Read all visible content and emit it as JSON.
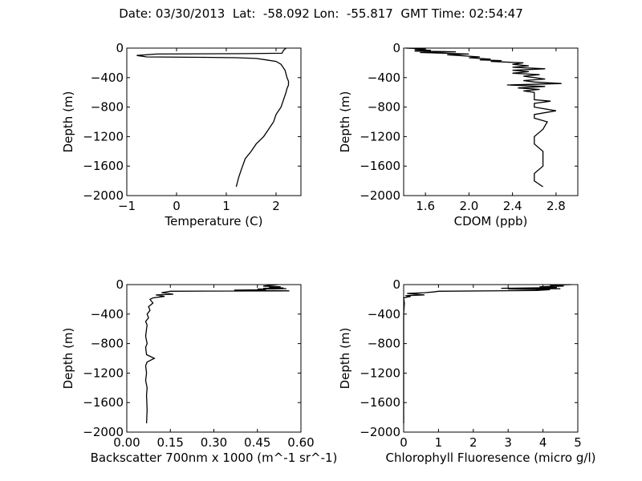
{
  "figure": {
    "suptitle": "Date: 03/30/2013  Lat:  -58.092 Lon:  -55.817  GMT Time: 02:54:47"
  },
  "chart_data": [
    {
      "type": "line",
      "title": "",
      "xlabel": "Temperature (C)",
      "ylabel": "Depth (m)",
      "xlim": [
        -1,
        2.5
      ],
      "ylim": [
        -2000,
        0
      ],
      "xticks": [
        -1,
        0,
        1,
        2
      ],
      "xtick_labels": [
        "−1",
        "0",
        "1",
        "2"
      ],
      "yticks": [
        0,
        -400,
        -800,
        -1200,
        -1600,
        -2000
      ],
      "ytick_labels": [
        "0",
        "−400",
        "−800",
        "−1200",
        "−1600",
        "−2000"
      ],
      "grid": false,
      "series": [
        {
          "x": [
            2.2,
            2.15,
            2.12,
            1.4,
            -0.4,
            -0.8,
            -0.6,
            0.5,
            1.2,
            1.6,
            1.8,
            2.0,
            2.1,
            2.18,
            2.2,
            2.22,
            2.25,
            2.25,
            2.22,
            2.2,
            2.15,
            2.1,
            2.0,
            1.95,
            1.85,
            1.75,
            1.6,
            1.5,
            1.38,
            1.3,
            1.25,
            1.2
          ],
          "y": [
            0,
            -30,
            -70,
            -75,
            -80,
            -100,
            -120,
            -125,
            -130,
            -140,
            -160,
            -180,
            -220,
            -300,
            -350,
            -400,
            -450,
            -500,
            -550,
            -600,
            -700,
            -800,
            -900,
            -1000,
            -1100,
            -1200,
            -1300,
            -1400,
            -1500,
            -1650,
            -1750,
            -1880
          ]
        }
      ]
    },
    {
      "type": "line",
      "title": "",
      "xlabel": "CDOM (ppb)",
      "ylabel": "Depth (m)",
      "xlim": [
        1.4,
        3.0
      ],
      "ylim": [
        -2000,
        0
      ],
      "xticks": [
        1.6,
        2.0,
        2.4,
        2.8
      ],
      "xtick_labels": [
        "1.6",
        "2.0",
        "2.4",
        "2.8"
      ],
      "yticks": [
        0,
        -400,
        -800,
        -1200,
        -1600,
        -2000
      ],
      "ytick_labels": [
        "0",
        "−400",
        "−800",
        "−1200",
        "−1600",
        "−2000"
      ],
      "grid": false,
      "series": [
        {
          "x": [
            1.42,
            1.6,
            1.5,
            1.65,
            1.5,
            1.88,
            1.55,
            2.0,
            1.8,
            2.1,
            2.0,
            2.2,
            2.1,
            2.3,
            2.2,
            2.5,
            2.4,
            2.55,
            2.4,
            2.7,
            2.4,
            2.55,
            2.4,
            2.65,
            2.5,
            2.6,
            2.7,
            2.5,
            2.6,
            2.85,
            2.35,
            2.7,
            2.45,
            2.65,
            2.5,
            2.6,
            2.6,
            2.75,
            2.6,
            2.6,
            2.8,
            2.6,
            2.6,
            2.72,
            2.68,
            2.6,
            2.6,
            2.68,
            2.68,
            2.6,
            2.6,
            2.68
          ],
          "y": [
            0,
            -10,
            -20,
            -30,
            -40,
            -50,
            -60,
            -80,
            -90,
            -120,
            -130,
            -150,
            -160,
            -170,
            -180,
            -200,
            -220,
            -240,
            -260,
            -280,
            -300,
            -320,
            -340,
            -360,
            -380,
            -400,
            -420,
            -440,
            -460,
            -480,
            -500,
            -520,
            -540,
            -560,
            -580,
            -600,
            -700,
            -720,
            -750,
            -800,
            -850,
            -900,
            -950,
            -1000,
            -1100,
            -1200,
            -1300,
            -1400,
            -1600,
            -1700,
            -1800,
            -1880
          ]
        }
      ]
    },
    {
      "type": "line",
      "title": "",
      "xlabel": "Backscatter 700nm x 1000 (m^-1 sr^-1)",
      "ylabel": "Depth (m)",
      "xlim": [
        0.0,
        0.6
      ],
      "ylim": [
        -2000,
        0
      ],
      "xticks": [
        0.0,
        0.15,
        0.3,
        0.45,
        0.6
      ],
      "xtick_labels": [
        "0.00",
        "0.15",
        "0.30",
        "0.45",
        "0.60"
      ],
      "yticks": [
        0,
        -400,
        -800,
        -1200,
        -1600,
        -2000
      ],
      "ytick_labels": [
        "0",
        "−400",
        "−800",
        "−1200",
        "−1600",
        "−2000"
      ],
      "grid": false,
      "series": [
        {
          "x": [
            0.52,
            0.47,
            0.53,
            0.49,
            0.54,
            0.47,
            0.55,
            0.45,
            0.48,
            0.37,
            0.56,
            0.15,
            0.12,
            0.16,
            0.1,
            0.13,
            0.09,
            0.08,
            0.09,
            0.075,
            0.08,
            0.07,
            0.075,
            0.065,
            0.07,
            0.068,
            0.065,
            0.07,
            0.065,
            0.068,
            0.095,
            0.07,
            0.065,
            0.068,
            0.065,
            0.07,
            0.068,
            0.07,
            0.068
          ],
          "y": [
            0,
            -20,
            -30,
            -40,
            -45,
            -50,
            -55,
            -60,
            -70,
            -75,
            -85,
            -90,
            -110,
            -130,
            -140,
            -160,
            -180,
            -200,
            -250,
            -300,
            -350,
            -400,
            -450,
            -500,
            -550,
            -600,
            -700,
            -800,
            -850,
            -950,
            -1000,
            -1050,
            -1100,
            -1200,
            -1300,
            -1400,
            -1500,
            -1700,
            -1880
          ]
        }
      ]
    },
    {
      "type": "line",
      "title": "",
      "xlabel": "Chlorophyll Fluoresence (micro g/l)",
      "ylabel": "Depth (m)",
      "xlim": [
        0,
        5
      ],
      "ylim": [
        -2000,
        0
      ],
      "xticks": [
        0,
        1,
        2,
        3,
        4,
        5
      ],
      "xtick_labels": [
        "0",
        "1",
        "2",
        "3",
        "4",
        "5"
      ],
      "yticks": [
        0,
        -400,
        -800,
        -1200,
        -1600,
        -2000
      ],
      "ytick_labels": [
        "0",
        "−400",
        "−800",
        "−1200",
        "−1600",
        "−2000"
      ],
      "grid": false,
      "series": [
        {
          "x": [
            4.8,
            4.2,
            4.6,
            3.9,
            4.4,
            2.8,
            4.5,
            3.0,
            4.2,
            3.8,
            1.0,
            0.85,
            0.6,
            0.1,
            0.6,
            0.05,
            0.2,
            0.0,
            0.02,
            0.0,
            0.0
          ],
          "y": [
            0,
            -10,
            -20,
            -30,
            -40,
            -50,
            -55,
            -60,
            -70,
            -80,
            -90,
            -100,
            -110,
            -120,
            -140,
            -150,
            -160,
            -180,
            -250,
            -400,
            -1880
          ]
        }
      ]
    }
  ]
}
